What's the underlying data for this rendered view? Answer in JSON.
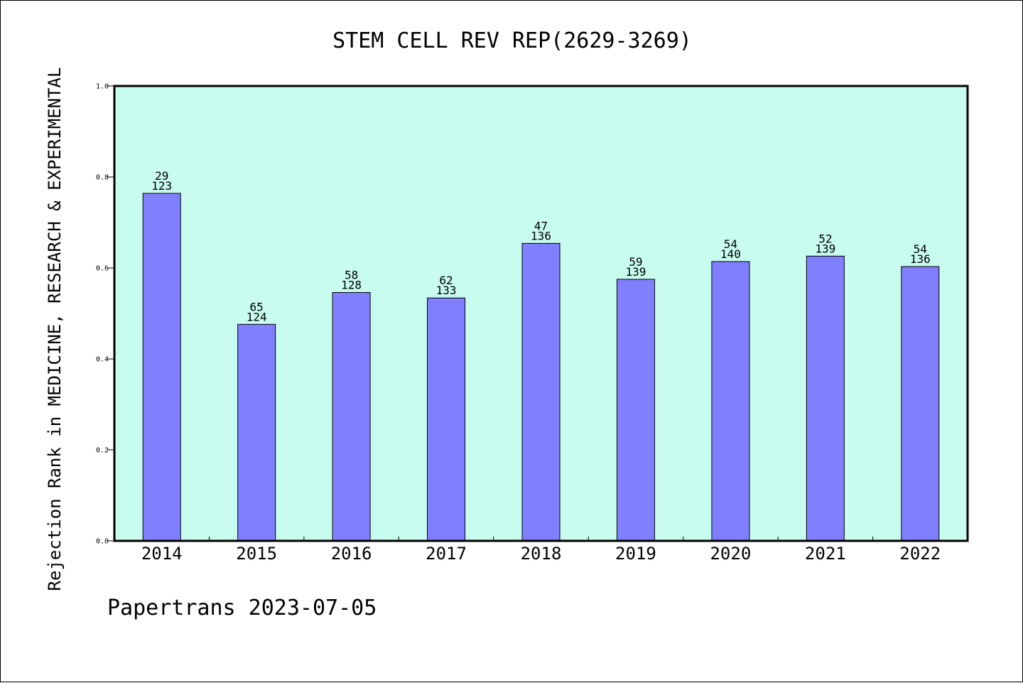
{
  "chart_data": {
    "type": "bar",
    "title": "STEM CELL REV REP(2629-3269)",
    "ylabel": "Rejection Rank in MEDICINE, RESEARCH & EXPERIMENTAL",
    "xlabel": "",
    "ylim": [
      0,
      1.0
    ],
    "yticks": [
      "0.0",
      "0.2",
      "0.4",
      "0.6",
      "0.8",
      "1.0"
    ],
    "categories": [
      "2014",
      "2015",
      "2016",
      "2017",
      "2018",
      "2019",
      "2020",
      "2021",
      "2022"
    ],
    "values": [
      0.764,
      0.476,
      0.546,
      0.534,
      0.654,
      0.575,
      0.614,
      0.626,
      0.603
    ],
    "labels_top": [
      "29",
      "65",
      "58",
      "62",
      "47",
      "59",
      "54",
      "52",
      "54"
    ],
    "labels_bottom": [
      "123",
      "124",
      "128",
      "133",
      "136",
      "139",
      "140",
      "139",
      "136"
    ],
    "grid": false,
    "plot_background": "#c8fcee",
    "bar_color": "#8080ff"
  },
  "footer": "Papertrans 2023-07-05"
}
